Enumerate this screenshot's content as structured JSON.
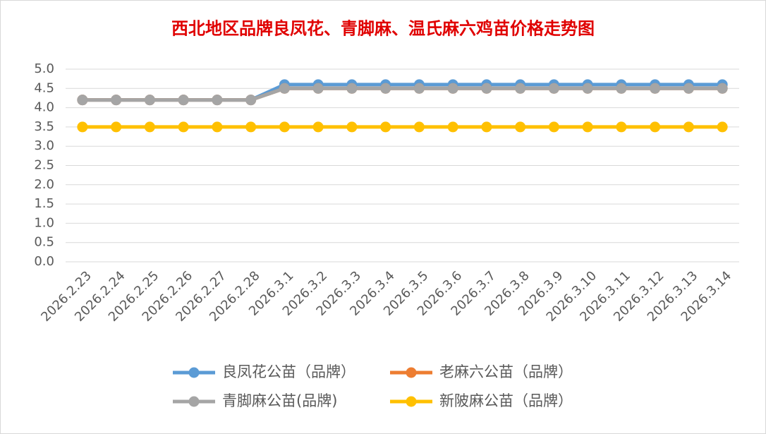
{
  "chart_data": {
    "type": "line",
    "title": "西北地区品牌良凤花、青脚麻、温氏麻六鸡苗价格走势图",
    "categories": [
      "2026.2.23",
      "2026.2.24",
      "2026.2.25",
      "2026.2.26",
      "2026.2.27",
      "2026.2.28",
      "2026.3.1",
      "2026.3.2",
      "2026.3.3",
      "2026.3.4",
      "2026.3.5",
      "2026.3.6",
      "2026.3.7",
      "2026.3.8",
      "2026.3.9",
      "2026.3.10",
      "2026.3.11",
      "2026.3.12",
      "2026.3.13",
      "2026.3.14"
    ],
    "series": [
      {
        "name": "良凤花公苗（品牌）",
        "color": "#5b9bd5",
        "values": [
          4.2,
          4.2,
          4.2,
          4.2,
          4.2,
          4.2,
          4.6,
          4.6,
          4.6,
          4.6,
          4.6,
          4.6,
          4.6,
          4.6,
          4.6,
          4.6,
          4.6,
          4.6,
          4.6,
          4.6
        ]
      },
      {
        "name": "老麻六公苗（品牌）",
        "color": "#ed7d31",
        "values": [
          4.2,
          4.2,
          4.2,
          4.2,
          4.2,
          4.2,
          4.5,
          4.5,
          4.5,
          4.5,
          4.5,
          4.5,
          4.5,
          4.5,
          4.5,
          4.5,
          4.5,
          4.5,
          4.5,
          4.5
        ]
      },
      {
        "name": "青脚麻公苗(品牌)",
        "color": "#a5a5a5",
        "values": [
          4.2,
          4.2,
          4.2,
          4.2,
          4.2,
          4.2,
          4.5,
          4.5,
          4.5,
          4.5,
          4.5,
          4.5,
          4.5,
          4.5,
          4.5,
          4.5,
          4.5,
          4.5,
          4.5,
          4.5
        ]
      },
      {
        "name": "新陂麻公苗（品牌）",
        "color": "#ffc000",
        "values": [
          3.5,
          3.5,
          3.5,
          3.5,
          3.5,
          3.5,
          3.5,
          3.5,
          3.5,
          3.5,
          3.5,
          3.5,
          3.5,
          3.5,
          3.5,
          3.5,
          3.5,
          3.5,
          3.5,
          3.5
        ]
      }
    ],
    "ylim": [
      0,
      5
    ],
    "yticks": [
      {
        "value": 0,
        "label": "0.0"
      },
      {
        "value": 0.5,
        "label": "0.5"
      },
      {
        "value": 1,
        "label": "1.0"
      },
      {
        "value": 1.5,
        "label": "1.5"
      },
      {
        "value": 2,
        "label": "2.0"
      },
      {
        "value": 2.5,
        "label": "2.5"
      },
      {
        "value": 3,
        "label": "3.0"
      },
      {
        "value": 3.5,
        "label": "3.5"
      },
      {
        "value": 4,
        "label": "4.0"
      },
      {
        "value": 4.5,
        "label": "4.5"
      },
      {
        "value": 5,
        "label": "5.0"
      }
    ],
    "grid": true
  }
}
